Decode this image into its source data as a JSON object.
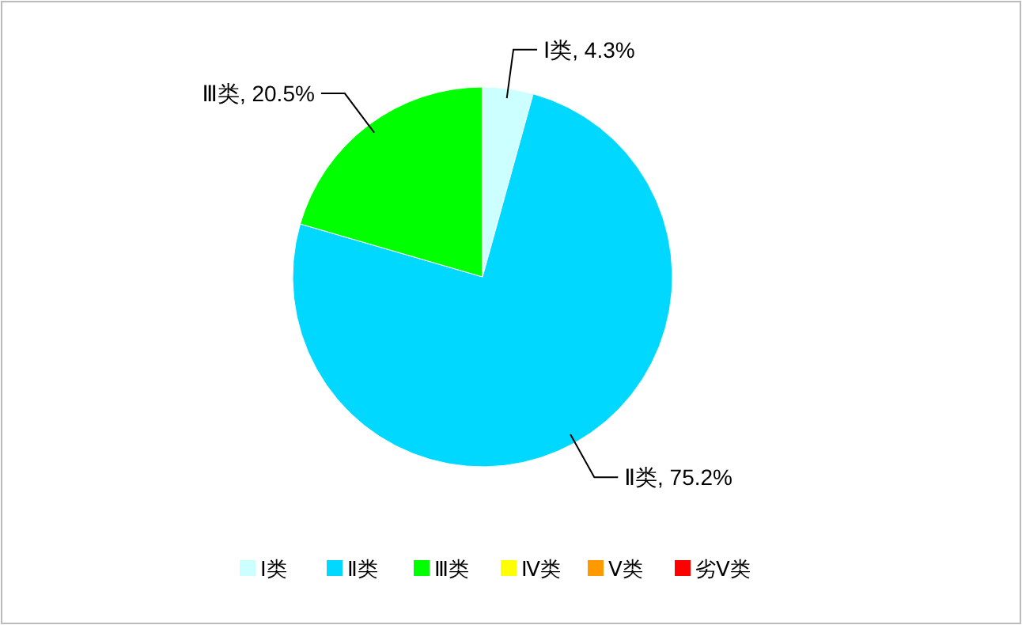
{
  "chart_data": {
    "type": "pie",
    "categories": [
      "Ⅰ类",
      "Ⅱ类",
      "Ⅲ类",
      "Ⅳ类",
      "Ⅴ类",
      "劣Ⅴ类"
    ],
    "values": [
      4.3,
      75.2,
      20.5,
      0,
      0,
      0
    ],
    "colors": [
      "#ccffff",
      "#00d8ff",
      "#00ff00",
      "#ffff00",
      "#ff9900",
      "#ff0000"
    ],
    "value_labels": [
      "Ⅰ类, 4.3%",
      "Ⅱ类, 75.2%",
      "Ⅲ类, 20.5%",
      null,
      null,
      null
    ],
    "legend": "bottom"
  }
}
